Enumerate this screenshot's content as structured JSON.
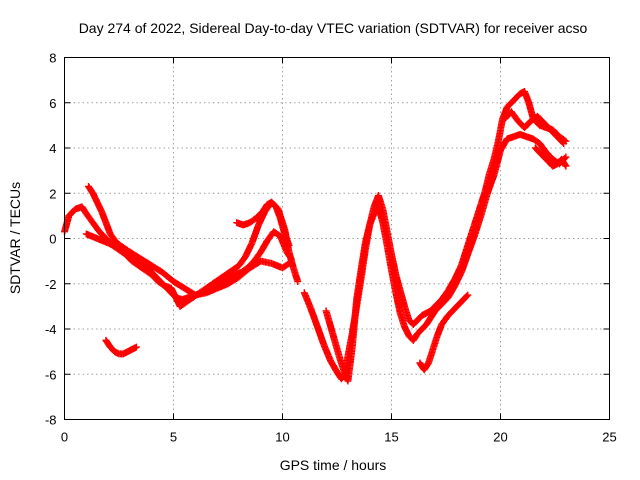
{
  "chart_data": {
    "type": "scatter",
    "title": "Day 274 of 2022, Sidereal Day-to-day VTEC variation (SDTVAR) for receiver acso",
    "xlabel": "GPS time / hours",
    "ylabel": "SDTVAR / TECUs",
    "xlim": [
      0,
      25
    ],
    "ylim": [
      -8,
      8
    ],
    "xticks": [
      0,
      5,
      10,
      15,
      20,
      25
    ],
    "yticks": [
      -8,
      -6,
      -4,
      -2,
      0,
      2,
      4,
      6,
      8
    ],
    "grid": true,
    "marker": "plus",
    "color": "#ff0000",
    "series": [
      {
        "x": [
          0.0,
          0.2,
          0.5,
          0.8,
          1.0,
          1.3,
          1.6,
          1.9,
          2.2,
          2.5,
          2.8,
          3.1,
          3.4,
          3.7,
          4.0,
          4.3,
          4.6,
          4.9,
          5.1,
          5.3,
          5.6,
          5.9,
          6.2,
          6.5,
          6.8,
          7.1,
          7.4,
          7.7,
          8.0,
          8.3,
          8.6,
          8.9,
          9.2,
          9.5,
          9.8,
          10.1,
          10.3,
          10.5,
          10.7
        ],
        "y": [
          0.3,
          1.0,
          1.3,
          1.4,
          1.1,
          0.7,
          0.3,
          0.0,
          -0.3,
          -0.5,
          -0.7,
          -1.0,
          -1.2,
          -1.4,
          -1.6,
          -1.9,
          -2.1,
          -2.2,
          -2.6,
          -3.0,
          -2.8,
          -2.6,
          -2.4,
          -2.2,
          -2.0,
          -1.8,
          -1.6,
          -1.4,
          -1.2,
          -0.8,
          -0.2,
          0.6,
          1.2,
          1.6,
          1.3,
          0.4,
          -0.6,
          -1.3,
          -1.9
        ]
      },
      {
        "x": [
          1.1,
          1.3,
          1.5,
          1.7,
          1.9,
          2.1,
          2.4,
          2.7,
          3.0,
          3.3,
          3.6,
          3.9,
          4.2,
          4.5,
          4.8,
          5.1,
          5.4,
          5.7,
          6.0,
          6.3,
          6.6,
          6.9,
          7.2,
          7.5,
          7.8,
          8.1,
          8.4,
          8.7,
          9.0,
          9.3,
          9.6,
          9.9,
          10.2,
          10.4
        ],
        "y": [
          2.3,
          2.0,
          1.6,
          1.2,
          0.7,
          0.2,
          -0.2,
          -0.4,
          -0.6,
          -0.9,
          -1.2,
          -1.4,
          -1.7,
          -2.0,
          -2.3,
          -2.6,
          -2.7,
          -2.6,
          -2.5,
          -2.4,
          -2.3,
          -2.1,
          -2.0,
          -1.8,
          -1.6,
          -1.5,
          -1.3,
          -1.0,
          -0.6,
          -0.1,
          0.3,
          0.1,
          -0.6,
          -0.9
        ]
      },
      {
        "x": [
          1.0,
          1.5,
          2.0,
          2.5,
          3.0,
          3.5,
          4.0,
          4.5,
          5.0,
          5.5,
          6.0,
          6.5,
          7.0,
          7.5,
          8.0,
          8.5,
          9.0,
          9.5,
          10.0,
          10.3
        ],
        "y": [
          0.2,
          0.0,
          -0.2,
          -0.4,
          -0.6,
          -0.9,
          -1.2,
          -1.5,
          -1.9,
          -2.2,
          -2.5,
          -2.4,
          -2.2,
          -2.0,
          -1.7,
          -1.3,
          -1.0,
          -1.1,
          -1.3,
          -1.1
        ]
      },
      {
        "x": [
          1.9,
          2.1,
          2.3,
          2.5,
          2.7,
          2.9,
          3.1,
          3.3
        ],
        "y": [
          -4.5,
          -4.8,
          -5.0,
          -5.1,
          -5.1,
          -5.0,
          -4.9,
          -4.8
        ]
      },
      {
        "x": [
          7.9,
          8.2,
          8.5,
          8.8,
          9.1,
          9.3,
          9.5,
          9.7,
          9.9,
          10.1,
          10.3
        ],
        "y": [
          0.7,
          0.6,
          0.7,
          0.9,
          1.2,
          1.5,
          1.6,
          1.4,
          0.9,
          0.2,
          -0.3
        ]
      },
      {
        "x": [
          11.0,
          11.3,
          11.6,
          11.9,
          12.2,
          12.5,
          12.7,
          12.9,
          13.0,
          13.2,
          13.4,
          13.6,
          13.8,
          14.0,
          14.2,
          14.4,
          14.6,
          14.8,
          15.0,
          15.2,
          15.4,
          15.6,
          15.8,
          16.0,
          16.2,
          16.4,
          16.6,
          16.8,
          17.0,
          17.3,
          17.6,
          17.9,
          18.2,
          18.5,
          18.8,
          19.1,
          19.3,
          19.5,
          19.7,
          19.9,
          20.1,
          20.3,
          20.5,
          20.7,
          20.9,
          21.1,
          21.3,
          21.5,
          21.8,
          22.1,
          22.4,
          22.7,
          23.0
        ],
        "y": [
          -2.4,
          -3.1,
          -3.9,
          -4.7,
          -5.4,
          -5.9,
          -6.2,
          -6.0,
          -5.2,
          -4.2,
          -3.0,
          -1.8,
          -0.5,
          0.6,
          1.4,
          1.9,
          1.3,
          0.3,
          -0.7,
          -1.6,
          -2.3,
          -3.0,
          -3.6,
          -3.8,
          -3.6,
          -3.4,
          -3.3,
          -3.2,
          -3.0,
          -2.7,
          -2.3,
          -1.8,
          -1.2,
          -0.3,
          0.6,
          1.5,
          2.1,
          2.9,
          3.5,
          4.3,
          5.3,
          5.8,
          6.0,
          6.2,
          6.4,
          6.5,
          6.0,
          5.3,
          5.0,
          4.9,
          4.8,
          4.5,
          4.3
        ]
      },
      {
        "x": [
          12.0,
          12.3,
          12.6,
          12.8,
          13.0,
          13.2,
          13.4,
          13.6,
          13.8,
          14.0,
          14.2,
          14.4,
          14.6,
          14.8,
          15.0,
          15.2,
          15.4,
          15.6,
          15.8,
          16.0,
          16.2,
          16.4,
          16.6,
          16.8,
          17.0,
          17.3,
          17.6,
          17.9,
          18.2,
          18.5,
          18.8,
          19.1,
          19.4,
          19.7,
          20.0,
          20.3,
          20.6,
          20.9,
          21.2,
          21.5,
          21.8,
          22.1,
          22.4,
          22.7,
          23.0
        ],
        "y": [
          -3.2,
          -4.2,
          -5.2,
          -5.8,
          -6.3,
          -4.8,
          -2.7,
          -1.4,
          -0.2,
          0.6,
          1.1,
          1.4,
          0.7,
          -0.3,
          -1.4,
          -2.4,
          -3.3,
          -3.9,
          -4.3,
          -4.5,
          -4.2,
          -4.0,
          -3.8,
          -3.5,
          -3.2,
          -2.9,
          -2.6,
          -2.1,
          -1.5,
          -0.7,
          0.1,
          1.0,
          2.0,
          2.8,
          3.9,
          4.4,
          4.5,
          4.6,
          4.5,
          4.4,
          4.2,
          3.8,
          3.5,
          3.3,
          3.6
        ]
      },
      {
        "x": [
          16.3,
          16.5,
          16.7,
          16.9,
          17.1,
          17.3,
          17.6,
          17.9,
          18.2,
          18.5
        ],
        "y": [
          -5.5,
          -5.8,
          -5.5,
          -4.9,
          -4.3,
          -3.8,
          -3.4,
          -3.1,
          -2.8,
          -2.5
        ]
      },
      {
        "x": [
          20.2,
          20.5,
          20.8,
          21.1,
          21.4,
          21.7,
          22.0,
          22.3,
          22.6,
          22.9
        ],
        "y": [
          5.3,
          5.6,
          5.2,
          4.9,
          5.2,
          5.4,
          5.1,
          4.8,
          4.5,
          4.2
        ]
      },
      {
        "x": [
          21.6,
          21.8,
          22.0,
          22.2,
          22.4,
          22.6,
          22.8,
          23.0
        ],
        "y": [
          4.0,
          3.8,
          3.6,
          3.4,
          3.2,
          3.3,
          3.5,
          3.2
        ]
      }
    ]
  }
}
